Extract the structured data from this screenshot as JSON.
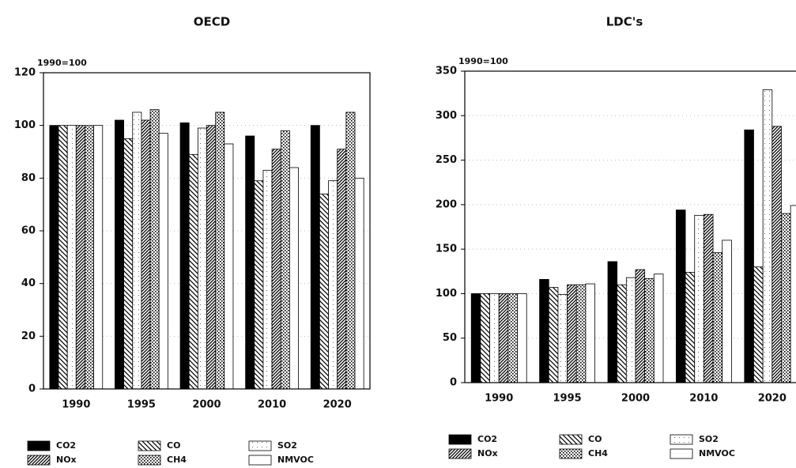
{
  "chart_data": [
    {
      "type": "bar",
      "title": "OECD",
      "y_label": "1990=100",
      "categories": [
        "1990",
        "1995",
        "2000",
        "2010",
        "2020"
      ],
      "ylim": [
        0,
        120
      ],
      "yticks": [
        0,
        20,
        40,
        60,
        80,
        100,
        120
      ],
      "grid": true,
      "series": [
        {
          "name": "CO2",
          "color": "#000000",
          "pattern": "solid",
          "values": [
            100,
            102,
            101,
            96,
            100
          ]
        },
        {
          "name": "CO",
          "color": "#000000",
          "pattern": "hatch",
          "values": [
            100,
            95,
            89,
            79,
            74
          ]
        },
        {
          "name": "SO2",
          "color": "#000000",
          "pattern": "sparse-dots",
          "values": [
            100,
            105,
            99,
            83,
            79
          ]
        },
        {
          "name": "NOx",
          "color": "#000000",
          "pattern": "dense-hatch",
          "values": [
            100,
            102,
            100,
            91,
            91
          ]
        },
        {
          "name": "CH4",
          "color": "#000000",
          "pattern": "dots",
          "values": [
            100,
            106,
            105,
            98,
            105
          ]
        },
        {
          "name": "NMVOC",
          "color": "#000000",
          "pattern": "empty",
          "values": [
            100,
            97,
            93,
            84,
            80
          ]
        }
      ]
    },
    {
      "type": "bar",
      "title": "LDC's",
      "y_label": "1990=100",
      "categories": [
        "1990",
        "1995",
        "2000",
        "2010",
        "2020"
      ],
      "ylim": [
        0,
        350
      ],
      "yticks": [
        0,
        50,
        100,
        150,
        200,
        250,
        300,
        350
      ],
      "grid": true,
      "series": [
        {
          "name": "CO2",
          "color": "#000000",
          "pattern": "solid",
          "values": [
            100,
            116,
            136,
            194,
            284
          ]
        },
        {
          "name": "CO",
          "color": "#000000",
          "pattern": "hatch",
          "values": [
            100,
            107,
            110,
            124,
            130
          ]
        },
        {
          "name": "SO2",
          "color": "#000000",
          "pattern": "sparse-dots",
          "values": [
            100,
            99,
            118,
            188,
            329
          ]
        },
        {
          "name": "NOx",
          "color": "#000000",
          "pattern": "dense-hatch",
          "values": [
            100,
            110,
            127,
            189,
            288
          ]
        },
        {
          "name": "CH4",
          "color": "#000000",
          "pattern": "dots",
          "values": [
            100,
            110,
            117,
            146,
            190
          ]
        },
        {
          "name": "NMVOC",
          "color": "#000000",
          "pattern": "empty",
          "values": [
            100,
            111,
            122,
            160,
            199
          ]
        }
      ]
    }
  ]
}
